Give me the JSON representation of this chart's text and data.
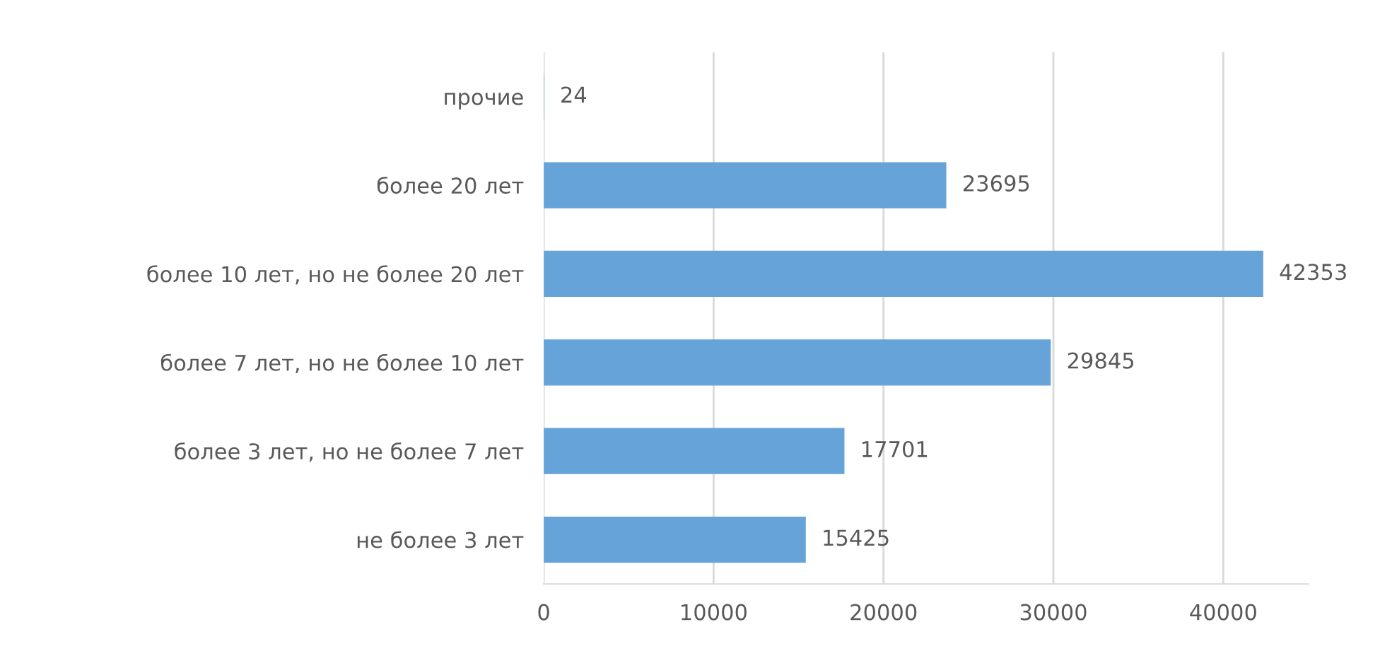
{
  "chart_data": {
    "type": "bar",
    "orientation": "horizontal",
    "categories": [
      "прочие",
      "более 20 лет",
      "более 10 лет, но не более 20 лет",
      "более 7 лет, но не более 10 лет",
      "более 3 лет, но не более 7 лет",
      "не более 3 лет"
    ],
    "values": [
      24,
      23695,
      42353,
      29845,
      17701,
      15425
    ],
    "color": "#65a3d8",
    "xlim": [
      0,
      45000
    ],
    "xticks": [
      0,
      10000,
      20000,
      30000,
      40000
    ],
    "grid": "x",
    "data_labels": true
  }
}
